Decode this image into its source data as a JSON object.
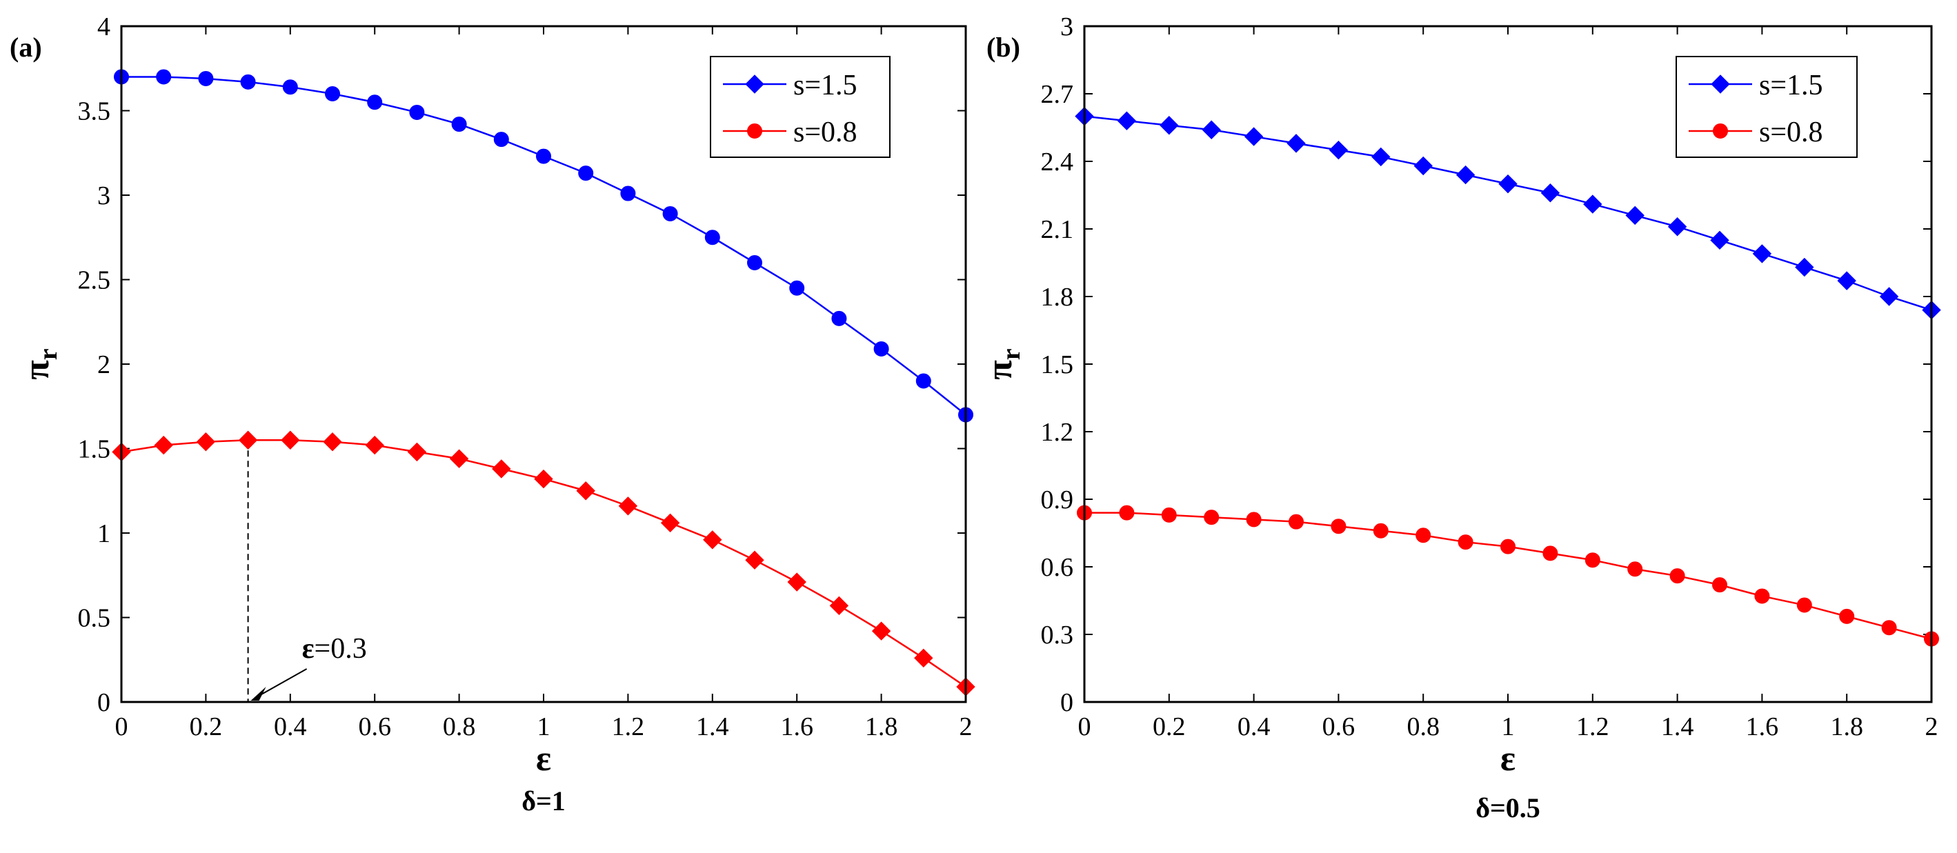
{
  "chart_data": [
    {
      "type": "line",
      "panel_label": "(a)",
      "xlabel": "ε",
      "ylabel_main": "π",
      "ylabel_sub": "r",
      "subtitle": "δ=1",
      "xlim": [
        0,
        2
      ],
      "ylim": [
        0,
        4
      ],
      "xticks": [
        "0",
        "0.2",
        "0.4",
        "0.6",
        "0.8",
        "1",
        "1.2",
        "1.4",
        "1.6",
        "1.8",
        "2"
      ],
      "yticks": [
        "0",
        "0.5",
        "1",
        "1.5",
        "2",
        "2.5",
        "3",
        "3.5",
        "4"
      ],
      "x": [
        0,
        0.1,
        0.2,
        0.3,
        0.4,
        0.5,
        0.6,
        0.7,
        0.8,
        0.9,
        1.0,
        1.1,
        1.2,
        1.3,
        1.4,
        1.5,
        1.6,
        1.7,
        1.8,
        1.9,
        2.0
      ],
      "series": [
        {
          "name": "s=1.5",
          "legend_marker": "diamond",
          "marker": "circle",
          "color": "#0000ff",
          "values": [
            3.7,
            3.7,
            3.69,
            3.67,
            3.64,
            3.6,
            3.55,
            3.49,
            3.42,
            3.33,
            3.23,
            3.13,
            3.01,
            2.89,
            2.75,
            2.6,
            2.45,
            2.27,
            2.09,
            1.9,
            1.7
          ]
        },
        {
          "name": "s=0.8",
          "legend_marker": "circle",
          "marker": "diamond",
          "color": "#ff0000",
          "values": [
            1.48,
            1.52,
            1.54,
            1.55,
            1.55,
            1.54,
            1.52,
            1.48,
            1.44,
            1.38,
            1.32,
            1.25,
            1.16,
            1.06,
            0.96,
            0.84,
            0.71,
            0.57,
            0.42,
            0.26,
            0.09
          ]
        }
      ],
      "annotation": {
        "text_bold": "ε",
        "text_rest": "=0.3",
        "x": 0.3,
        "y_top": 1.55
      },
      "legend_position": "top-right"
    },
    {
      "type": "line",
      "panel_label": "(b)",
      "xlabel": "ε",
      "ylabel_main": "π",
      "ylabel_sub": "r",
      "subtitle": "δ=0.5",
      "xlim": [
        0,
        2
      ],
      "ylim": [
        0,
        3
      ],
      "xticks": [
        "0",
        "0.2",
        "0.4",
        "0.6",
        "0.8",
        "1",
        "1.2",
        "1.4",
        "1.6",
        "1.8",
        "2"
      ],
      "yticks": [
        "0",
        "0.3",
        "0.6",
        "0.9",
        "1.2",
        "1.5",
        "1.8",
        "2.1",
        "2.4",
        "2.7",
        "3"
      ],
      "x": [
        0,
        0.1,
        0.2,
        0.3,
        0.4,
        0.5,
        0.6,
        0.7,
        0.8,
        0.9,
        1.0,
        1.1,
        1.2,
        1.3,
        1.4,
        1.5,
        1.6,
        1.7,
        1.8,
        1.9,
        2.0
      ],
      "series": [
        {
          "name": "s=1.5",
          "legend_marker": "diamond",
          "marker": "diamond",
          "color": "#0000ff",
          "values": [
            2.6,
            2.58,
            2.56,
            2.54,
            2.51,
            2.48,
            2.45,
            2.42,
            2.38,
            2.34,
            2.3,
            2.26,
            2.21,
            2.16,
            2.11,
            2.05,
            1.99,
            1.93,
            1.87,
            1.8,
            1.74
          ]
        },
        {
          "name": "s=0.8",
          "legend_marker": "circle",
          "marker": "circle",
          "color": "#ff0000",
          "values": [
            0.84,
            0.84,
            0.83,
            0.82,
            0.81,
            0.8,
            0.78,
            0.76,
            0.74,
            0.71,
            0.69,
            0.66,
            0.63,
            0.59,
            0.56,
            0.52,
            0.47,
            0.43,
            0.38,
            0.33,
            0.28
          ]
        }
      ],
      "legend_position": "top-right"
    }
  ]
}
